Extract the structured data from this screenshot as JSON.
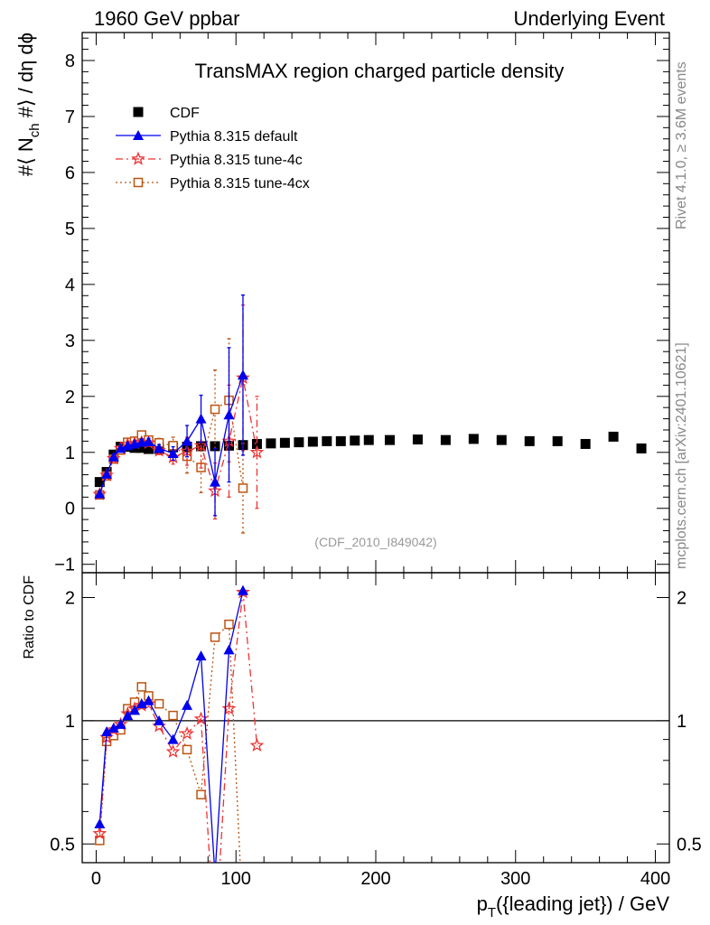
{
  "header": {
    "left": "1960 GeV ppbar",
    "right": "Underlying Event"
  },
  "side_text": {
    "rivet": "Rivet 4.1.0, ≥ 3.6M events",
    "mcplots": "mcplots.cern.ch [arXiv:2401.10621]"
  },
  "chart_data": [
    {
      "panel": "main",
      "type": "scatter",
      "title": "TransMAX region charged particle density",
      "ylabel_parts": [
        "#⟨ N",
        "ch",
        " #⟩ / dη dϕ"
      ],
      "ylim": [
        -1.15,
        8.5
      ],
      "yticks": [
        -1,
        0,
        1,
        2,
        3,
        4,
        5,
        6,
        7,
        8
      ],
      "ytick_labels": [
        "−1",
        "0",
        "1",
        "2",
        "3",
        "4",
        "5",
        "6",
        "7",
        "8"
      ],
      "xlim": [
        -10,
        410
      ],
      "watermark": "(CDF_2010_I849042)",
      "legend_position": "top-left",
      "series": [
        {
          "name": "CDF",
          "color": "#000000",
          "marker": "filled-square",
          "line": "none",
          "x": [
            2.5,
            7.5,
            12.5,
            17.5,
            22.5,
            27.5,
            32.5,
            37.5,
            45,
            55,
            65,
            75,
            85,
            95,
            105,
            115,
            125,
            135,
            145,
            155,
            165,
            175,
            185,
            195,
            210,
            230,
            250,
            270,
            290,
            310,
            330,
            350,
            370,
            390
          ],
          "y": [
            0.47,
            0.65,
            0.96,
            1.1,
            1.1,
            1.08,
            1.08,
            1.06,
            1.06,
            1.09,
            1.1,
            1.11,
            1.11,
            1.12,
            1.13,
            1.15,
            1.16,
            1.17,
            1.18,
            1.19,
            1.2,
            1.2,
            1.21,
            1.22,
            1.22,
            1.23,
            1.22,
            1.24,
            1.22,
            1.2,
            1.2,
            1.15,
            1.28,
            1.07
          ]
        },
        {
          "name": "Pythia 8.315 default",
          "color": "#0000ee",
          "marker": "filled-triangle",
          "line": "solid",
          "x": [
            2.5,
            7.5,
            12.5,
            17.5,
            22.5,
            27.5,
            32.5,
            37.5,
            45,
            55,
            65,
            75,
            85,
            95,
            105
          ],
          "y": [
            0.26,
            0.61,
            0.92,
            1.07,
            1.12,
            1.15,
            1.18,
            1.19,
            1.07,
            0.98,
            1.2,
            1.6,
            0.47,
            1.67,
            2.38
          ],
          "err": [
            0.03,
            0.04,
            0.05,
            0.05,
            0.05,
            0.05,
            0.06,
            0.06,
            0.07,
            0.12,
            0.28,
            0.42,
            0.6,
            1.2,
            1.43
          ]
        },
        {
          "name": "Pythia 8.315 tune-4c",
          "color": "#ee3333",
          "marker": "star",
          "line": "dashdot",
          "x": [
            2.5,
            7.5,
            12.5,
            17.5,
            22.5,
            27.5,
            32.5,
            37.5,
            45,
            55,
            65,
            75,
            85,
            95,
            105,
            115
          ],
          "y": [
            0.25,
            0.59,
            0.89,
            1.07,
            1.14,
            1.16,
            1.18,
            1.17,
            1.03,
            0.91,
            1.02,
            1.12,
            0.31,
            1.2,
            2.33,
            1.0
          ],
          "err": [
            0.03,
            0.04,
            0.05,
            0.05,
            0.05,
            0.05,
            0.06,
            0.06,
            0.07,
            0.12,
            0.25,
            0.4,
            0.5,
            1.0,
            1.3,
            1.0
          ]
        },
        {
          "name": "Pythia 8.315 tune-4cx",
          "color": "#bb5511",
          "marker": "open-square",
          "line": "dotted",
          "x": [
            2.5,
            7.5,
            12.5,
            17.5,
            22.5,
            27.5,
            32.5,
            37.5,
            45,
            55,
            65,
            75,
            85,
            95,
            105
          ],
          "y": [
            0.24,
            0.58,
            0.88,
            1.04,
            1.18,
            1.2,
            1.31,
            1.22,
            1.17,
            1.12,
            0.93,
            0.73,
            1.77,
            1.93,
            0.36
          ],
          "err": [
            0.03,
            0.04,
            0.05,
            0.05,
            0.05,
            0.05,
            0.06,
            0.06,
            0.08,
            0.15,
            0.3,
            0.45,
            0.7,
            1.1,
            0.8
          ]
        }
      ]
    },
    {
      "panel": "ratio",
      "type": "line",
      "ylabel": "Ratio to CDF",
      "ylim": [
        0.45,
        2.3
      ],
      "yscale": "log",
      "yticks": [
        0.5,
        1,
        2
      ],
      "ytick_labels": [
        "0.5",
        "1",
        "2"
      ],
      "xlim": [
        -10,
        410
      ],
      "xticks": [
        0,
        100,
        200,
        300,
        400
      ],
      "xtick_labels": [
        "0",
        "100",
        "200",
        "300",
        "400"
      ],
      "xlabel_parts": [
        "p",
        "T",
        "({leading jet}) / GeV"
      ],
      "reference_line": 1,
      "series": [
        {
          "name": "Pythia 8.315 default",
          "color": "#0000ee",
          "marker": "filled-triangle",
          "line": "solid",
          "x": [
            2.5,
            7.5,
            12.5,
            17.5,
            22.5,
            27.5,
            32.5,
            37.5,
            45,
            55,
            65,
            75,
            85,
            95,
            105
          ],
          "y": [
            0.56,
            0.94,
            0.96,
            0.98,
            1.03,
            1.06,
            1.1,
            1.12,
            1.0,
            0.9,
            1.09,
            1.44,
            0.42,
            1.49,
            2.08
          ]
        },
        {
          "name": "Pythia 8.315 tune-4c",
          "color": "#ee3333",
          "marker": "star",
          "line": "dashdot",
          "x": [
            2.5,
            7.5,
            12.5,
            17.5,
            22.5,
            27.5,
            32.5,
            37.5,
            45,
            55,
            65,
            75,
            85,
            95,
            105,
            115
          ],
          "y": [
            0.53,
            0.91,
            0.95,
            0.98,
            1.04,
            1.07,
            1.09,
            1.1,
            0.97,
            0.84,
            0.93,
            1.01,
            0.28,
            1.07,
            2.06,
            0.87
          ]
        },
        {
          "name": "Pythia 8.315 tune-4cx",
          "color": "#bb5511",
          "marker": "open-square",
          "line": "dotted",
          "x": [
            2.5,
            7.5,
            12.5,
            17.5,
            22.5,
            27.5,
            32.5,
            37.5,
            45,
            55,
            65,
            75,
            85,
            95,
            105
          ],
          "y": [
            0.51,
            0.89,
            0.92,
            0.95,
            1.07,
            1.11,
            1.21,
            1.15,
            1.1,
            1.03,
            0.85,
            0.66,
            1.6,
            1.72,
            0.32
          ]
        }
      ]
    }
  ]
}
